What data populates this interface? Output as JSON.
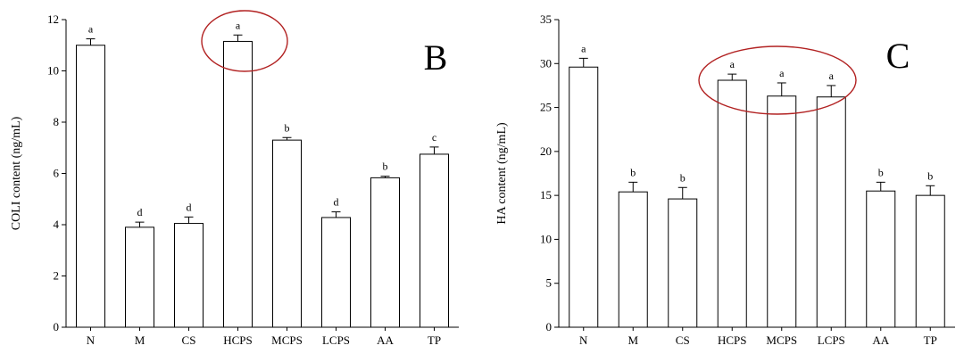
{
  "chart_data": [
    {
      "type": "bar",
      "panel_letter": "B",
      "title": "",
      "xlabel": "",
      "ylabel": "COLI content (ng/mL)",
      "ylim": [
        0,
        12
      ],
      "yticks": [
        0,
        2,
        4,
        6,
        8,
        10,
        12
      ],
      "categories": [
        "N",
        "M",
        "CS",
        "HCPS",
        "MCPS",
        "LCPS",
        "AA",
        "TP"
      ],
      "values": [
        11.0,
        3.9,
        4.05,
        11.15,
        7.3,
        4.28,
        5.83,
        6.75
      ],
      "errors": [
        0.25,
        0.2,
        0.25,
        0.25,
        0.1,
        0.22,
        0.06,
        0.28
      ],
      "significance_letters": [
        "a",
        "d",
        "d",
        "a",
        "b",
        "d",
        "b",
        "c"
      ],
      "bar_color": "#ffffff",
      "highlight": {
        "shape": "red ellipse",
        "around": [
          "HCPS"
        ],
        "color": "#b22222"
      },
      "grid": false,
      "legend": "none"
    },
    {
      "type": "bar",
      "panel_letter": "C",
      "title": "",
      "xlabel": "",
      "ylabel": "HA content (ng/mL)",
      "ylim": [
        0,
        35
      ],
      "yticks": [
        0,
        5,
        10,
        15,
        20,
        25,
        30,
        35
      ],
      "categories": [
        "N",
        "M",
        "CS",
        "HCPS",
        "MCPS",
        "LCPS",
        "AA",
        "TP"
      ],
      "values": [
        29.6,
        15.4,
        14.6,
        28.1,
        26.3,
        26.2,
        15.5,
        15.0
      ],
      "errors": [
        1.0,
        1.1,
        1.3,
        0.7,
        1.5,
        1.3,
        1.0,
        1.1
      ],
      "significance_letters": [
        "a",
        "b",
        "b",
        "a",
        "a",
        "a",
        "b",
        "b"
      ],
      "bar_color": "#ffffff",
      "highlight": {
        "shape": "red ellipse",
        "around": [
          "HCPS",
          "MCPS",
          "LCPS"
        ],
        "color": "#b22222"
      },
      "grid": false,
      "legend": "none"
    }
  ]
}
